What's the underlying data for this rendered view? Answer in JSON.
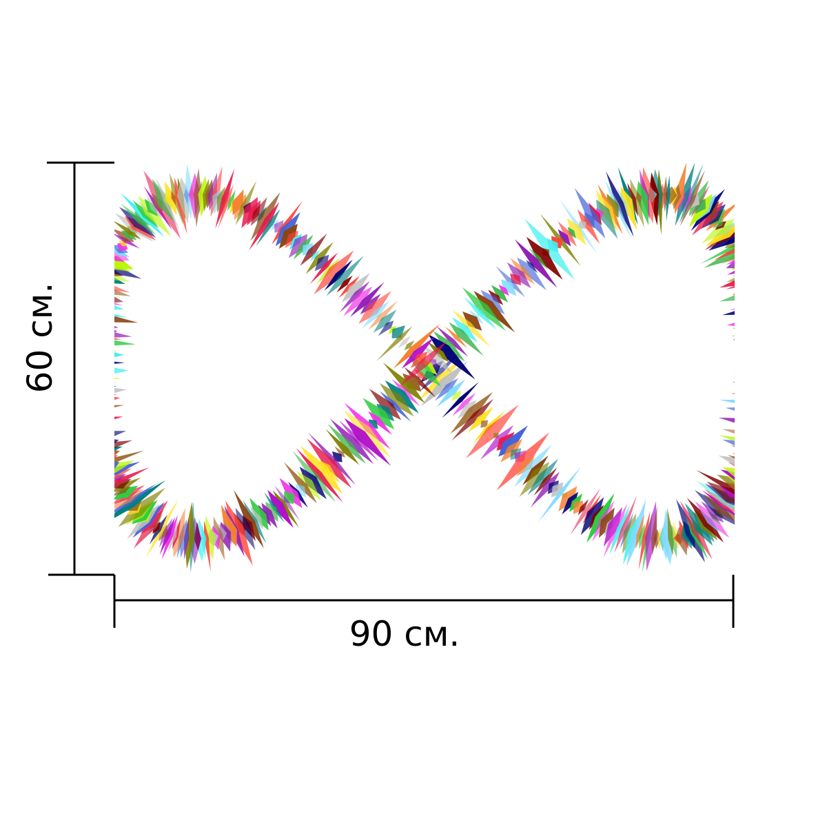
{
  "dimensions": {
    "width_label": "90 см.",
    "height_label": "60 см."
  },
  "artwork": {
    "subject": "infinity-sign",
    "style": "multicolor sound-wave strokes",
    "palette": [
      "#e6194b",
      "#3cb44b",
      "#ffe119",
      "#4363d8",
      "#f58231",
      "#911eb4",
      "#46f0f0",
      "#f032e6",
      "#bcf60c",
      "#008080",
      "#9a6324",
      "#800000",
      "#808000",
      "#000075",
      "#7fdbff",
      "#ff4136",
      "#2ecc40",
      "#b10dc9",
      "#c0c0c0",
      "#8b4513"
    ]
  },
  "colors": {
    "dimension_lines": "#000000",
    "background": "#ffffff"
  }
}
